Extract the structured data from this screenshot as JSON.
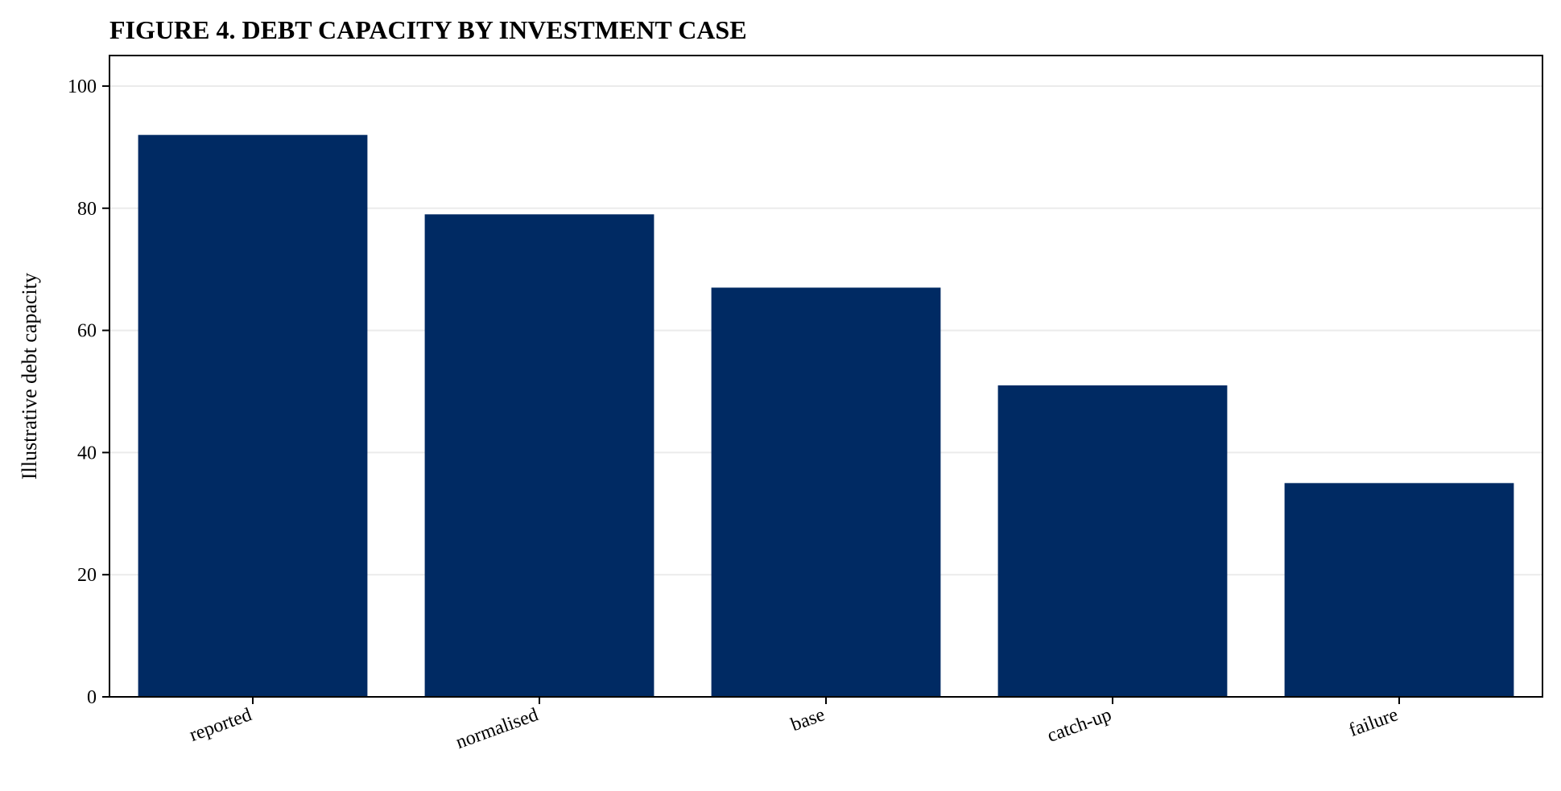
{
  "chart_data": {
    "type": "bar",
    "title": "FIGURE 4. DEBT CAPACITY BY INVESTMENT CASE",
    "xlabel": "",
    "ylabel": "Illustrative debt capacity",
    "categories": [
      "reported",
      "normalised",
      "base",
      "catch-up",
      "failure"
    ],
    "values": [
      92,
      79,
      67,
      51,
      35
    ],
    "ylim": [
      0,
      105
    ],
    "yticks": [
      0,
      20,
      40,
      60,
      80,
      100
    ],
    "grid": "horizontal",
    "legend": "none",
    "bar_color": "#002a63",
    "grid_color": "#ebebeb",
    "axis_color": "#000000"
  }
}
